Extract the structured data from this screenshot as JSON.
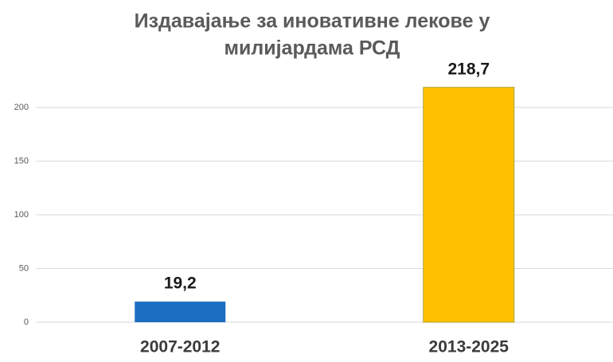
{
  "chart_data": {
    "type": "bar",
    "title": [
      "Издавајање за иновативне лекове у",
      "милијардама РСД"
    ],
    "categories": [
      "2007-2012",
      "2013-2025"
    ],
    "values": [
      19.2,
      218.7
    ],
    "value_labels": [
      "19,2",
      "218,7"
    ],
    "colors": [
      "#1b6ec2",
      "#ffc000"
    ],
    "ylim": [
      0,
      230
    ],
    "yticks": [
      0,
      50,
      100,
      150,
      200
    ],
    "grid": true
  }
}
